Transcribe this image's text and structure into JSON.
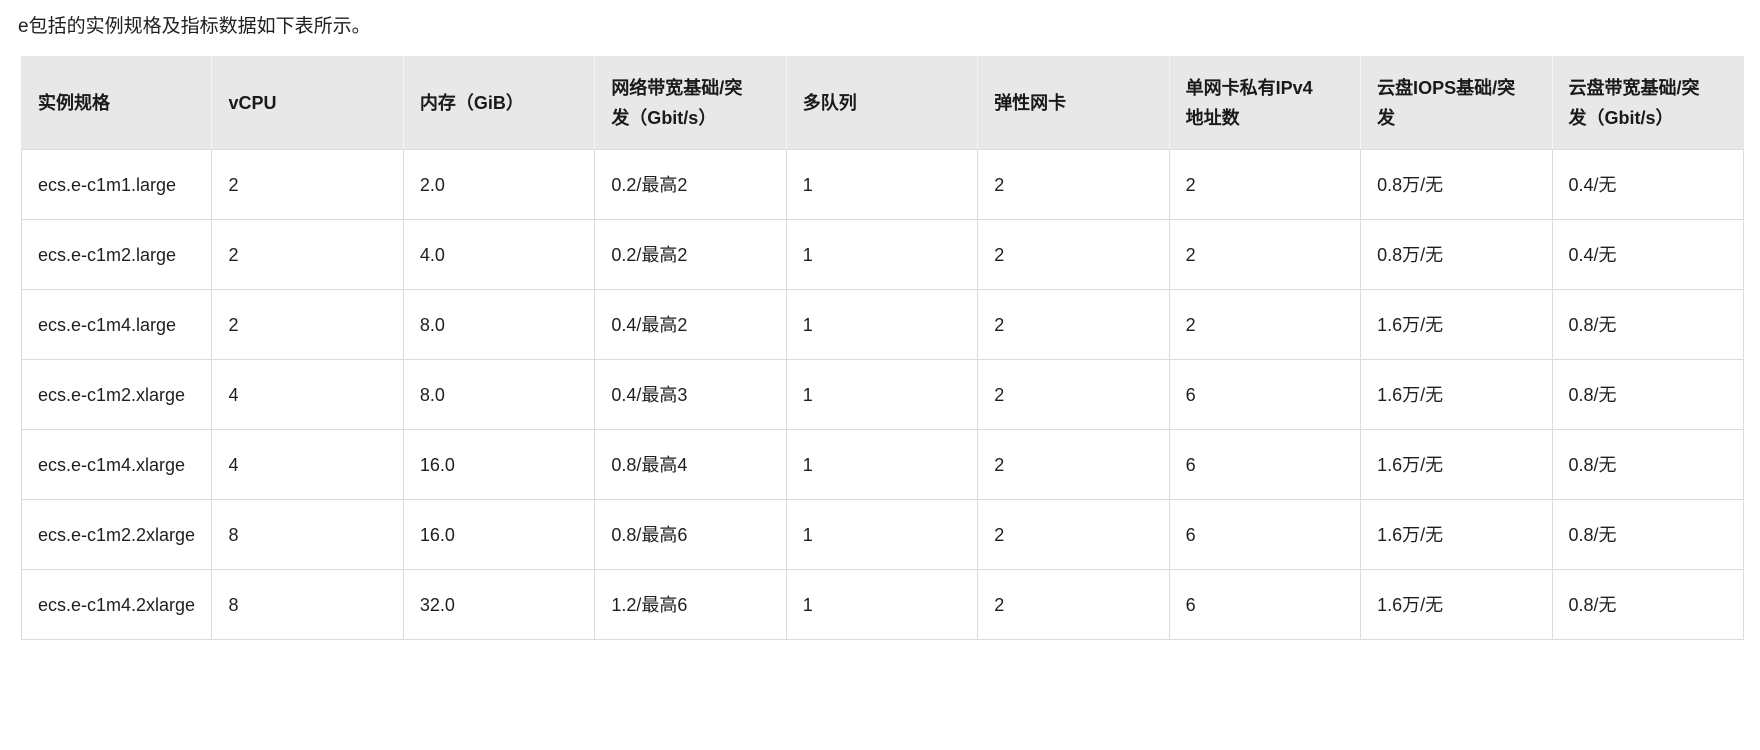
{
  "intro": "e包括的实例规格及指标数据如下表所示。",
  "table": {
    "columns": [
      "实例规格",
      "vCPU",
      "内存（GiB）",
      "网络带宽基础/突发（Gbit/s）",
      "多队列",
      "弹性网卡",
      "单网卡私有IPv4地址数",
      "云盘IOPS基础/突发",
      "云盘带宽基础/突发（Gbit/s）"
    ],
    "rows": [
      [
        "ecs.e-c1m1.large",
        "2",
        "2.0",
        "0.2/最高2",
        "1",
        "2",
        "2",
        "0.8万/无",
        "0.4/无"
      ],
      [
        "ecs.e-c1m2.large",
        "2",
        "4.0",
        "0.2/最高2",
        "1",
        "2",
        "2",
        "0.8万/无",
        "0.4/无"
      ],
      [
        "ecs.e-c1m4.large",
        "2",
        "8.0",
        "0.4/最高2",
        "1",
        "2",
        "2",
        "1.6万/无",
        "0.8/无"
      ],
      [
        "ecs.e-c1m2.xlarge",
        "4",
        "8.0",
        "0.4/最高3",
        "1",
        "2",
        "6",
        "1.6万/无",
        "0.8/无"
      ],
      [
        "ecs.e-c1m4.xlarge",
        "4",
        "16.0",
        "0.8/最高4",
        "1",
        "2",
        "6",
        "1.6万/无",
        "0.8/无"
      ],
      [
        "ecs.e-c1m2.2xlarge",
        "8",
        "16.0",
        "0.8/最高6",
        "1",
        "2",
        "6",
        "1.6万/无",
        "0.8/无"
      ],
      [
        "ecs.e-c1m4.2xlarge",
        "8",
        "32.0",
        "1.2/最高6",
        "1",
        "2",
        "6",
        "1.6万/无",
        "0.8/无"
      ]
    ]
  },
  "colors": {
    "header_bg": "#e8e8e8",
    "border": "#dcdcdc",
    "text": "#1f1f1f"
  }
}
